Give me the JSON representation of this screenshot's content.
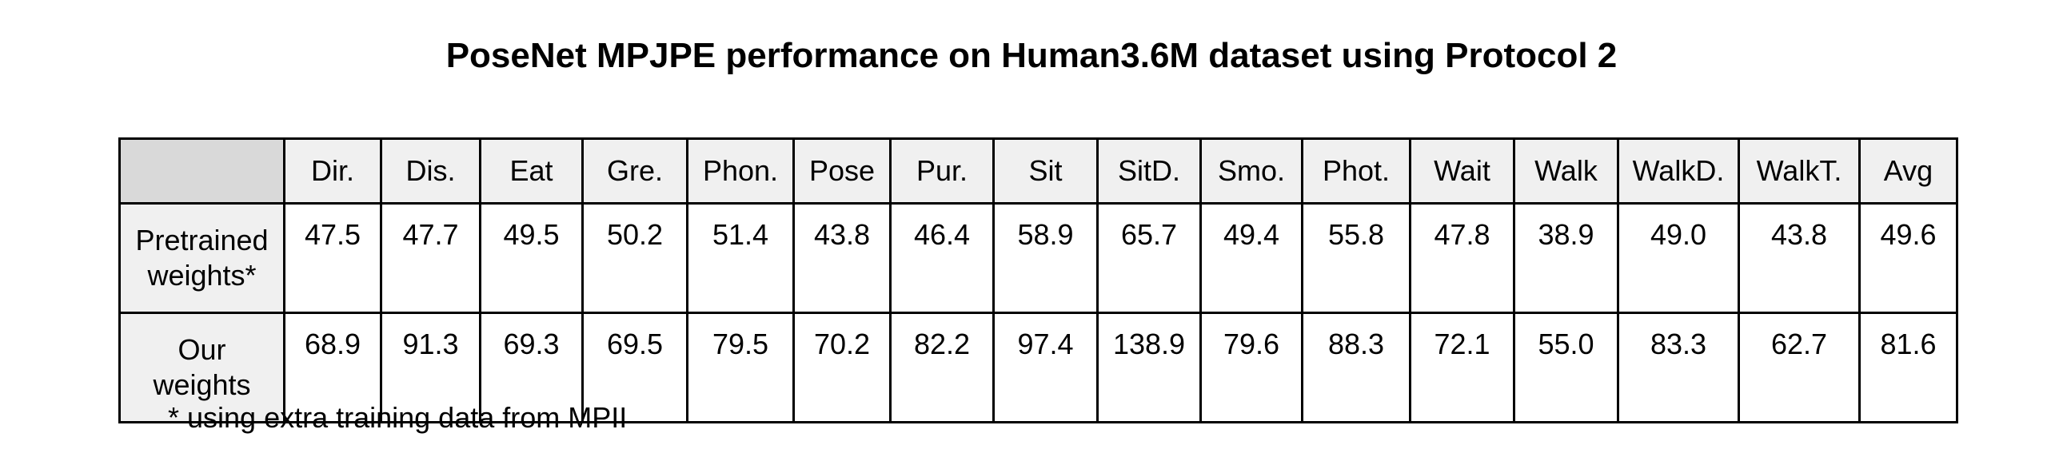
{
  "title": "PoseNet MPJPE performance on Human3.6M dataset using Protocol 2",
  "footnote": "* using extra training data from MPII",
  "chart_data": {
    "type": "table",
    "title": "PoseNet MPJPE performance on Human3.6M dataset using Protocol 2",
    "columns": [
      "Dir.",
      "Dis.",
      "Eat",
      "Gre.",
      "Phon.",
      "Pose",
      "Pur.",
      "Sit",
      "SitD.",
      "Smo.",
      "Phot.",
      "Wait",
      "Walk",
      "WalkD.",
      "WalkT.",
      "Avg"
    ],
    "rows": [
      {
        "label_lines": [
          "Pretrained",
          "weights*"
        ],
        "values": [
          "47.5",
          "47.7",
          "49.5",
          "50.2",
          "51.4",
          "43.8",
          "46.4",
          "58.9",
          "65.7",
          "49.4",
          "55.8",
          "47.8",
          "38.9",
          "49.0",
          "43.8",
          "49.6"
        ]
      },
      {
        "label_lines": [
          "Our",
          "weights"
        ],
        "values": [
          "68.9",
          "91.3",
          "69.3",
          "69.5",
          "79.5",
          "70.2",
          "82.2",
          "97.4",
          "138.9",
          "79.6",
          "88.3",
          "72.1",
          "55.0",
          "83.3",
          "62.7",
          "81.6"
        ]
      }
    ],
    "footnote": "* using extra training data from MPII"
  },
  "colors": {
    "header_fill": "#f0f0f0",
    "corner_fill": "#d9d9d9",
    "border": "#000000"
  }
}
